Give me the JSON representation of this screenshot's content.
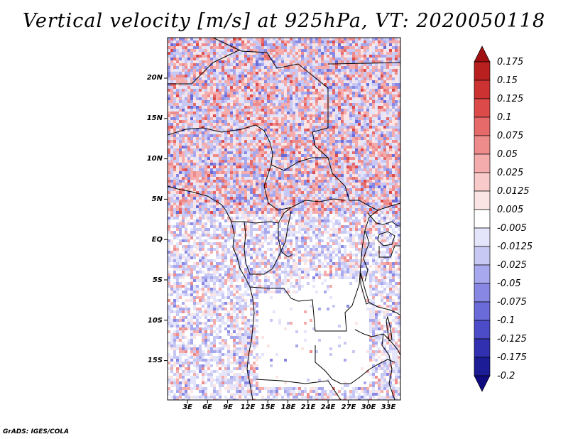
{
  "title": "Vertical velocity [m/s] at 925hPa, VT: 2020050118",
  "footer": "GrADS: IGES/COLA",
  "map": {
    "lat_ticks": [
      "20N",
      "15N",
      "10N",
      "5N",
      "EQ",
      "5S",
      "10S",
      "15S"
    ],
    "lon_ticks": [
      "3E",
      "6E",
      "9E",
      "12E",
      "15E",
      "18E",
      "21E",
      "24E",
      "27E",
      "30E",
      "33E"
    ]
  },
  "colorbar": {
    "labels": [
      "0.175",
      "0.15",
      "0.125",
      "0.1",
      "0.075",
      "0.05",
      "0.025",
      "0.0125",
      "0.005",
      "-0.005",
      "-0.0125",
      "-0.025",
      "-0.05",
      "-0.075",
      "-0.1",
      "-0.125",
      "-0.175",
      "-0.2"
    ],
    "colors": [
      "#a01010",
      "#b82020",
      "#cc3232",
      "#dd4a4a",
      "#e66a6a",
      "#ee8c8c",
      "#f4acac",
      "#f8caca",
      "#fbe4e4",
      "#ffffff",
      "#e4e4fa",
      "#c8c8f4",
      "#a8a8ee",
      "#8888e4",
      "#6a6ad8",
      "#4c4cc8",
      "#3030b0",
      "#1c1c96",
      "#100a80"
    ]
  }
}
